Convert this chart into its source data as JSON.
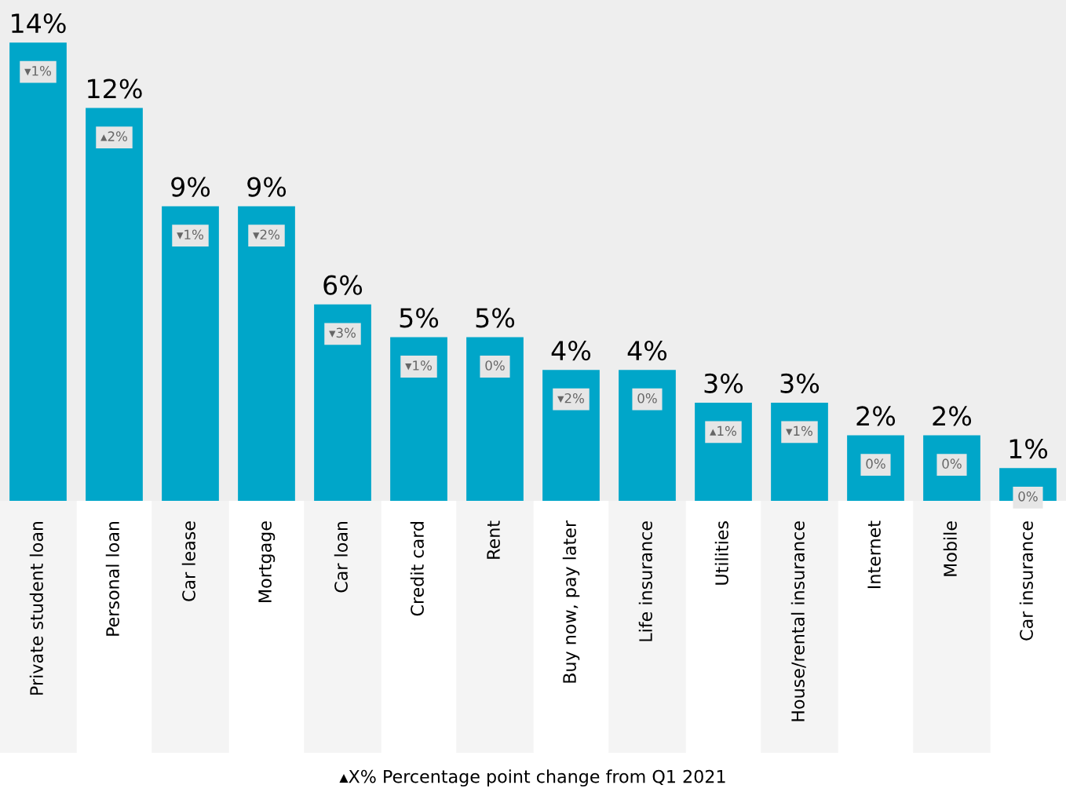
{
  "chart_data": {
    "type": "bar",
    "categories": [
      "Private student loan",
      "Personal loan",
      "Car lease",
      "Mortgage",
      "Car loan",
      "Credit card",
      "Rent",
      "Buy now, pay later",
      "Life insurance",
      "Utilities",
      "House/rental insurance",
      "Internet",
      "Mobile",
      "Car insurance"
    ],
    "values": [
      14,
      12,
      9,
      9,
      6,
      5,
      5,
      4,
      4,
      3,
      3,
      2,
      2,
      1
    ],
    "value_labels": [
      "14%",
      "12%",
      "9%",
      "9%",
      "6%",
      "5%",
      "5%",
      "4%",
      "4%",
      "3%",
      "3%",
      "2%",
      "2%",
      "1%"
    ],
    "color": "#00a6c9",
    "ylim": [
      0,
      15.3
    ],
    "grid": false,
    "legend": false,
    "annotations": [
      {
        "text": "▾1%",
        "x": "Private student loan",
        "y": 14
      },
      {
        "text": "▴2%",
        "x": "Personal loan",
        "y": 12
      },
      {
        "text": "▾1%",
        "x": "Car lease",
        "y": 9
      },
      {
        "text": "▾2%",
        "x": "Mortgage",
        "y": 9
      },
      {
        "text": "▾3%",
        "x": "Car loan",
        "y": 6
      },
      {
        "text": "▾1%",
        "x": "Credit card",
        "y": 5
      },
      {
        "text": "0%",
        "x": "Rent",
        "y": 5
      },
      {
        "text": "▾2%",
        "x": "Buy now, pay later",
        "y": 4
      },
      {
        "text": "0%",
        "x": "Life insurance",
        "y": 4
      },
      {
        "text": "▴1%",
        "x": "Utilities",
        "y": 3
      },
      {
        "text": "▾1%",
        "x": "House/rental insurance",
        "y": 3
      },
      {
        "text": "0%",
        "x": "Internet",
        "y": 2
      },
      {
        "text": "0%",
        "x": "Mobile",
        "y": 2
      },
      {
        "text": "0%",
        "x": "Car insurance",
        "y": 1
      },
      "▴X% Percentage point change from Q1 2021"
    ]
  }
}
